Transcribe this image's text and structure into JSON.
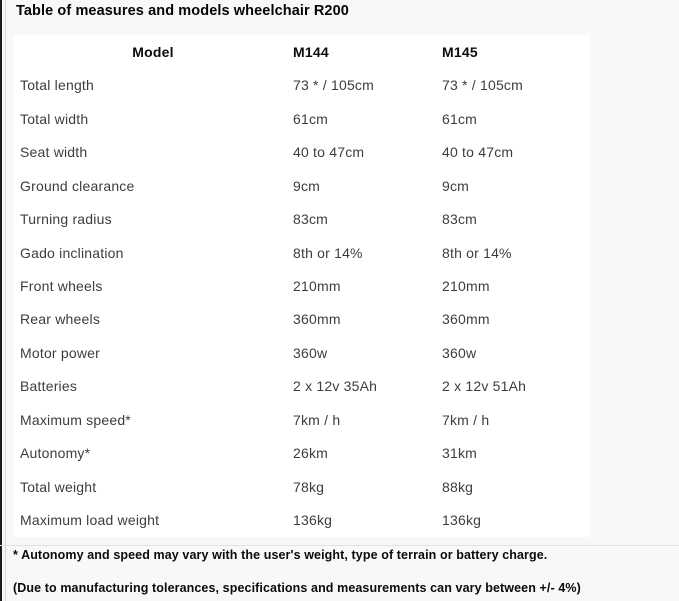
{
  "page": {
    "title": "Table of measures and models wheelchair R200"
  },
  "table": {
    "columns": [
      "Model",
      "M144",
      "M145"
    ],
    "rows": [
      {
        "label": "Total length",
        "m144": "73 * / 105cm",
        "m145": "73 * / 105cm"
      },
      {
        "label": "Total width",
        "m144": "61cm",
        "m145": "61cm"
      },
      {
        "label": "Seat width",
        "m144": "40 to 47cm",
        "m145": "40 to 47cm"
      },
      {
        "label": "Ground clearance",
        "m144": "9cm",
        "m145": "9cm"
      },
      {
        "label": "Turning radius",
        "m144": "83cm",
        "m145": "83cm"
      },
      {
        "label": "Gado inclination",
        "m144": "8th or 14%",
        "m145": "8th or 14%"
      },
      {
        "label": "Front wheels",
        "m144": "210mm",
        "m145": "210mm"
      },
      {
        "label": "Rear wheels",
        "m144": "360mm",
        "m145": "360mm"
      },
      {
        "label": "Motor power",
        "m144": "360w",
        "m145": "360w"
      },
      {
        "label": "Batteries",
        "m144": "2 x 12v 35Ah",
        "m145": "2 x 12v 51Ah"
      },
      {
        "label": "Maximum speed*",
        "m144": "7km / h",
        "m145": "7km / h"
      },
      {
        "label": "Autonomy*",
        "m144": "26km",
        "m145": "31km"
      },
      {
        "label": "Total weight",
        "m144": "78kg",
        "m145": "88kg"
      },
      {
        "label": "Maximum load weight",
        "m144": "136kg",
        "m145": "136kg"
      }
    ]
  },
  "notes": {
    "note1": "* Autonomy and speed may vary with the user's weight, type of terrain or battery charge.",
    "note2": "(Due to manufacturing tolerances, specifications and measurements can vary between +/- 4%)"
  },
  "colors": {
    "page_bg": "#f8f8f8",
    "table_bg": "#ffffff",
    "body_text": "#3d3d3d",
    "heading_text": "#0c0c0c",
    "left_border": "#1a1a1a",
    "inner_rule": "#d6d6d6",
    "divider": "#e0e0e0"
  }
}
